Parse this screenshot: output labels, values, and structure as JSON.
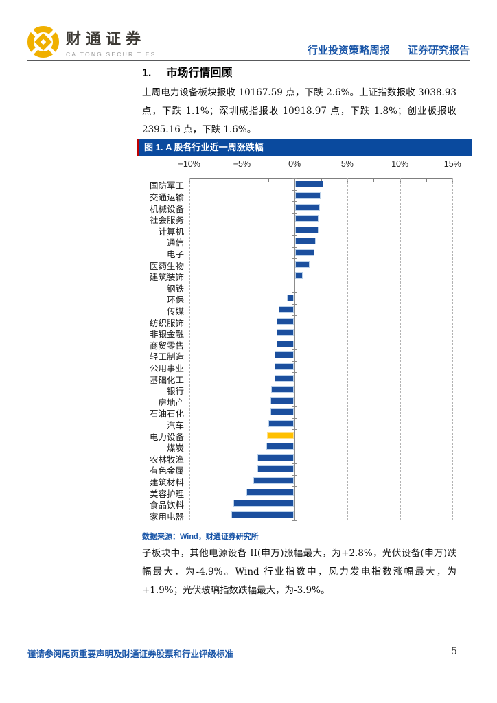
{
  "header": {
    "brand_cn": "财通证券",
    "brand_en": "CAITONG SECURITIES",
    "report_type": "行业投资策略周报",
    "report_category": "证券研究报告"
  },
  "section": {
    "number": "1.",
    "title": "市场行情回顾"
  },
  "paragraph1": "上周电力设备板块报收 10167.59 点，下跌 2.6%。上证指数报收 3038.93 点，下跌 1.1%；深圳成指报收 10918.97 点，下跌 1.8%；创业板报收 2395.16 点，下跌 1.6%。",
  "figure": {
    "title": "图 1. A 股各行业近一周涨跌幅",
    "source": "数据来源：Wind，财通证券研究所"
  },
  "chart_data": {
    "type": "bar",
    "orientation": "horizontal",
    "title": "图 1. A 股各行业近一周涨跌幅",
    "unit": "%",
    "xlim": [
      -10,
      15
    ],
    "x_tick_values": [
      -10,
      -5,
      0,
      5,
      10,
      15
    ],
    "x_ticks": [
      "−10%",
      "−5%",
      "0%",
      "5%",
      "10%",
      "15%"
    ],
    "grid": "dashed-vertical-gridlines",
    "legend": "none",
    "bar_color": "#1b4f9e",
    "bar_border_color": "#bcd2ea",
    "highlight_color": "#ffc000",
    "highlight_border_color": "#ffe08a",
    "highlight_category": "电力设备",
    "categories": [
      "国防军工",
      "交通运输",
      "机械设备",
      "社会服务",
      "计算机",
      "通信",
      "电子",
      "医药生物",
      "建筑装饰",
      "钢铁",
      "环保",
      "传媒",
      "纺织服饰",
      "非银金融",
      "商贸零售",
      "轻工制造",
      "公用事业",
      "基础化工",
      "银行",
      "房地产",
      "石油石化",
      "汽车",
      "电力设备",
      "煤炭",
      "农林牧渔",
      "有色金属",
      "建筑材料",
      "美容护理",
      "食品饮料",
      "家用电器"
    ],
    "values": [
      2.7,
      2.5,
      2.4,
      2.3,
      2.3,
      2.0,
      1.9,
      1.4,
      0.8,
      0.0,
      -0.7,
      -1.5,
      -1.7,
      -1.7,
      -1.7,
      -1.9,
      -1.9,
      -1.9,
      -2.2,
      -2.3,
      -2.3,
      -2.5,
      -2.6,
      -2.7,
      -3.5,
      -3.5,
      -3.9,
      -4.6,
      -5.8,
      -6.0
    ]
  },
  "paragraph2": "子板块中，其他电源设备 II(申万)涨幅最大，为+2.8%，光伏设备(申万)跌幅最大，为-4.9%。Wind 行业指数中，风力发电指数涨幅最大，为+1.9%；光伏玻璃指数跌幅最大，为-3.9%。",
  "footer": {
    "disclaimer": "谨请参阅尾页重要声明及财通证券股票和行业评级标准",
    "page_number": "5"
  },
  "colors": {
    "accent_blue": "#1a56a8",
    "figure_title_bg": "#0a4a9e",
    "figure_title_accent": "#c00000",
    "brand_gold": "#f0b000"
  }
}
